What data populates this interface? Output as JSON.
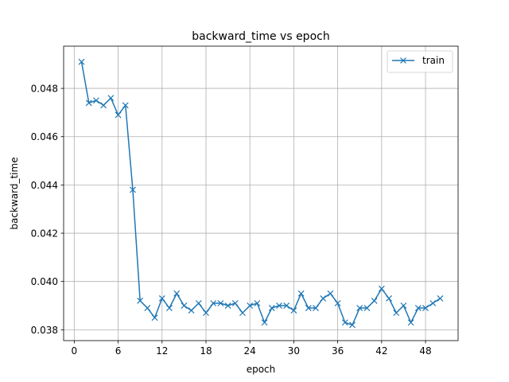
{
  "chart_data": {
    "type": "line",
    "title": "backward_time vs epoch",
    "xlabel": "epoch",
    "ylabel": "backward_time",
    "xlim": [
      -1.45,
      52.45
    ],
    "ylim": [
      0.03755,
      0.04975
    ],
    "xticks": [
      0,
      6,
      12,
      18,
      24,
      30,
      36,
      42,
      48
    ],
    "xtick_labels": [
      "0",
      "6",
      "12",
      "18",
      "24",
      "30",
      "36",
      "42",
      "48"
    ],
    "yticks": [
      0.038,
      0.04,
      0.042,
      0.044,
      0.046,
      0.048
    ],
    "ytick_labels": [
      "0.038",
      "0.040",
      "0.042",
      "0.044",
      "0.046",
      "0.048"
    ],
    "grid": true,
    "legend_position": "top-right",
    "series": [
      {
        "name": "train",
        "color": "#1f77b4",
        "marker": "x",
        "x": [
          1,
          2,
          3,
          4,
          5,
          6,
          7,
          8,
          9,
          10,
          11,
          12,
          13,
          14,
          15,
          16,
          17,
          18,
          19,
          20,
          21,
          22,
          23,
          24,
          25,
          26,
          27,
          28,
          29,
          30,
          31,
          32,
          33,
          34,
          35,
          36,
          37,
          38,
          39,
          40,
          41,
          42,
          43,
          44,
          45,
          46,
          47,
          48,
          49,
          50
        ],
        "values": [
          0.0491,
          0.0474,
          0.0475,
          0.0473,
          0.0476,
          0.0469,
          0.0473,
          0.0438,
          0.0392,
          0.0389,
          0.0385,
          0.0393,
          0.0389,
          0.0395,
          0.039,
          0.0388,
          0.0391,
          0.0387,
          0.0391,
          0.0391,
          0.039,
          0.0391,
          0.0387,
          0.039,
          0.0391,
          0.0383,
          0.0389,
          0.039,
          0.039,
          0.0388,
          0.0395,
          0.0389,
          0.0389,
          0.0393,
          0.0395,
          0.0391,
          0.0383,
          0.0382,
          0.0389,
          0.0389,
          0.0392,
          0.0397,
          0.0393,
          0.0387,
          0.039,
          0.0383,
          0.0389,
          0.0389,
          0.0391,
          0.0393
        ]
      }
    ]
  }
}
